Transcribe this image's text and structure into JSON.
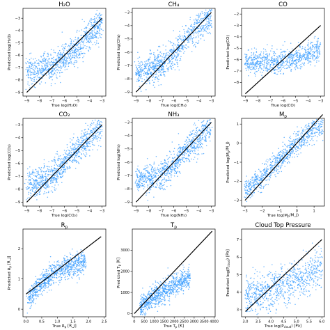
{
  "chart_data": [
    {
      "type": "scatter",
      "title": "H₂O",
      "xlabel": "True log(H₂O)",
      "ylabel": "Predicted log(H₂O)",
      "xlim": [
        -9.3,
        -2.7
      ],
      "ylim": [
        -9.3,
        -2.2
      ],
      "xticks": [
        -9,
        -8,
        -7,
        -6,
        -5,
        -4,
        -3
      ],
      "yticks": [
        -9,
        -8,
        -7,
        -6,
        -5,
        -4,
        -3
      ],
      "xtick_labels": [
        "−9",
        "−8",
        "−7",
        "−6",
        "−5",
        "−4",
        "−3"
      ],
      "ytick_labels": [
        "−9",
        "−8",
        "−7",
        "−6",
        "−5",
        "−4",
        "−3"
      ],
      "identity_line": [
        [
          -9,
          -9
        ],
        [
          -3,
          -3
        ]
      ],
      "point_color": "#3399ff",
      "line_color": "#000000",
      "trend": [
        [
          -9,
          -7.3
        ],
        [
          -7,
          -6.9
        ],
        [
          -6,
          -6.3
        ],
        [
          -5,
          -5.4
        ],
        [
          -4,
          -4.3
        ],
        [
          -3,
          -3.3
        ]
      ],
      "spread": 0.6,
      "n_points": 900
    },
    {
      "type": "scatter",
      "title": "CH₄",
      "xlabel": "True log(CH₄)",
      "ylabel": "Predicted log(CH₄)",
      "xlim": [
        -9.3,
        -2.7
      ],
      "ylim": [
        -9.3,
        -2.7
      ],
      "xticks": [
        -9,
        -8,
        -7,
        -6,
        -5,
        -4,
        -3
      ],
      "yticks": [
        -9,
        -8,
        -7,
        -6,
        -5,
        -4,
        -3
      ],
      "xtick_labels": [
        "−9",
        "−8",
        "−7",
        "−6",
        "−5",
        "−4",
        "−3"
      ],
      "ytick_labels": [
        "−9",
        "−8",
        "−7",
        "−6",
        "−5",
        "−4",
        "−3"
      ],
      "identity_line": [
        [
          -9,
          -9
        ],
        [
          -3,
          -3
        ]
      ],
      "point_color": "#3399ff",
      "line_color": "#000000",
      "trend": [
        [
          -9,
          -7.6
        ],
        [
          -7,
          -7.0
        ],
        [
          -6,
          -6.2
        ],
        [
          -5,
          -5.0
        ],
        [
          -4,
          -4.1
        ],
        [
          -3,
          -3.2
        ]
      ],
      "spread": 0.55,
      "n_points": 900
    },
    {
      "type": "scatter",
      "title": "CO",
      "xlabel": "True log(CO)",
      "ylabel": "Predicted log(CO)",
      "xlim": [
        -9.3,
        -2.7
      ],
      "ylim": [
        -9.2,
        -1.5
      ],
      "xticks": [
        -9,
        -8,
        -7,
        -6,
        -5,
        -4,
        -3
      ],
      "yticks": [
        -8,
        -7,
        -6,
        -5,
        -4,
        -3,
        -2
      ],
      "xtick_labels": [
        "−9",
        "−8",
        "−7",
        "−6",
        "−5",
        "−4",
        "−3"
      ],
      "ytick_labels": [
        "−8",
        "−7",
        "−6",
        "−5",
        "−4",
        "−3",
        "−2"
      ],
      "identity_line": [
        [
          -9,
          -9
        ],
        [
          -3,
          -3
        ]
      ],
      "point_color": "#3399ff",
      "line_color": "#000000",
      "trend": [
        [
          -9,
          -6.3
        ],
        [
          -6,
          -6.1
        ],
        [
          -4,
          -5.6
        ],
        [
          -3,
          -5.0
        ]
      ],
      "spread": 0.5,
      "n_points": 800
    },
    {
      "type": "scatter",
      "title": "CO₂",
      "xlabel": "True log(CO₂)",
      "ylabel": "Predicted log(CO₂)",
      "xlim": [
        -9.3,
        -2.7
      ],
      "ylim": [
        -9.3,
        -2.5
      ],
      "xticks": [
        -9,
        -8,
        -7,
        -6,
        -5,
        -4,
        -3
      ],
      "yticks": [
        -9,
        -8,
        -7,
        -6,
        -5,
        -4,
        -3
      ],
      "xtick_labels": [
        "−9",
        "−8",
        "−7",
        "−6",
        "−5",
        "−4",
        "−3"
      ],
      "ytick_labels": [
        "−9",
        "−8",
        "−7",
        "−6",
        "−5",
        "−4",
        "−3"
      ],
      "identity_line": [
        [
          -9,
          -9
        ],
        [
          -3,
          -3
        ]
      ],
      "point_color": "#3399ff",
      "line_color": "#000000",
      "trend": [
        [
          -9,
          -7.7
        ],
        [
          -7,
          -7.1
        ],
        [
          -6,
          -6.0
        ],
        [
          -5,
          -4.9
        ],
        [
          -4,
          -4.0
        ],
        [
          -3,
          -3.1
        ]
      ],
      "spread": 0.55,
      "n_points": 900
    },
    {
      "type": "scatter",
      "title": "NH₃",
      "xlabel": "True log(NH₃)",
      "ylabel": "Predicted log(NH₃)",
      "xlim": [
        -9.3,
        -2.7
      ],
      "ylim": [
        -9.3,
        -2.7
      ],
      "xticks": [
        -9,
        -8,
        -7,
        -6,
        -5,
        -4,
        -3
      ],
      "yticks": [
        -9,
        -8,
        -7,
        -6,
        -5,
        -4,
        -3
      ],
      "xtick_labels": [
        "−9",
        "−8",
        "−7",
        "−6",
        "−5",
        "−4",
        "−3"
      ],
      "ytick_labels": [
        "−9",
        "−8",
        "−7",
        "−6",
        "−5",
        "−4",
        "−3"
      ],
      "identity_line": [
        [
          -9,
          -9
        ],
        [
          -3,
          -3
        ]
      ],
      "point_color": "#3399ff",
      "line_color": "#000000",
      "trend": [
        [
          -9,
          -7.3
        ],
        [
          -7,
          -7.0
        ],
        [
          -6,
          -6.2
        ],
        [
          -5,
          -5.2
        ],
        [
          -4,
          -4.2
        ],
        [
          -3,
          -3.2
        ]
      ],
      "spread": 0.55,
      "n_points": 900
    },
    {
      "type": "scatter",
      "title": "M_p",
      "xlabel": "True log(M_p/M_J)",
      "ylabel": "Predicted log(M_p/M_J)",
      "xlim": [
        -3.2,
        1.6
      ],
      "ylim": [
        -3.3,
        1.3
      ],
      "xticks": [
        -3,
        -2,
        -1,
        0,
        1
      ],
      "yticks": [
        -3,
        -2,
        -1,
        0,
        1
      ],
      "xtick_labels": [
        "−3",
        "−2",
        "−1",
        "0",
        "1"
      ],
      "ytick_labels": [
        "−3",
        "−2",
        "−1",
        "0",
        "1"
      ],
      "identity_line": [
        [
          -3,
          -3
        ],
        [
          1.5,
          1.5
        ]
      ],
      "point_color": "#3399ff",
      "line_color": "#000000",
      "trend": [
        [
          -3,
          -2.5
        ],
        [
          -2,
          -1.8
        ],
        [
          -1,
          -0.9
        ],
        [
          0,
          0.0
        ],
        [
          1,
          0.8
        ],
        [
          1.5,
          0.9
        ]
      ],
      "spread": 0.3,
      "n_points": 800
    },
    {
      "type": "scatter",
      "title": "R_p",
      "xlabel": "True R_p [R_J]",
      "ylabel": "Predicted R_p [R_J]",
      "xlim": [
        -0.1,
        2.55
      ],
      "ylim": [
        -0.25,
        2.65
      ],
      "xticks": [
        0.0,
        0.5,
        1.0,
        1.5,
        2.0,
        2.5
      ],
      "yticks": [
        0,
        1,
        2
      ],
      "xtick_labels": [
        "0.0",
        "0.5",
        "1.0",
        "1.5",
        "2.0",
        "2.5"
      ],
      "ytick_labels": [
        "0",
        "1",
        "2"
      ],
      "identity_line": [
        [
          0,
          0.5
        ],
        [
          2.4,
          2.4
        ]
      ],
      "point_color": "#3399ff",
      "line_color": "#000000",
      "trend": [
        [
          0.05,
          0.3
        ],
        [
          0.5,
          0.9
        ],
        [
          1.0,
          1.25
        ],
        [
          1.5,
          1.45
        ],
        [
          1.9,
          1.55
        ]
      ],
      "spread": 0.18,
      "n_points": 800
    },
    {
      "type": "scatter",
      "title": "T_p",
      "xlabel": "True T_p [K]",
      "ylabel": "Predicted T_p [K]",
      "xlim": [
        -100,
        4050
      ],
      "ylim": [
        -150,
        4000
      ],
      "xticks": [
        0,
        500,
        1000,
        1500,
        2000,
        2500,
        3000,
        3500,
        4000
      ],
      "yticks": [
        0,
        1000,
        2000,
        3000
      ],
      "xtick_labels": [
        "0",
        "500",
        "1000",
        "1500",
        "2000",
        "2500",
        "3000",
        "3500",
        "4000"
      ],
      "ytick_labels": [
        "0",
        "1000",
        "2000",
        "3000"
      ],
      "identity_line": [
        [
          0,
          0
        ],
        [
          3900,
          3900
        ]
      ],
      "point_color": "#3399ff",
      "line_color": "#000000",
      "trend": [
        [
          300,
          250
        ],
        [
          1000,
          800
        ],
        [
          2000,
          1350
        ],
        [
          2800,
          1750
        ]
      ],
      "spread": 260,
      "n_points": 800
    },
    {
      "type": "scatter",
      "title": "Cloud Top Pressure",
      "xlabel": "True log(P_cloud) [Pa]",
      "ylabel": "Predicted log(P_cloud) [Pa]",
      "xlim": [
        2.85,
        6.1
      ],
      "ylim": [
        2.6,
        7.6
      ],
      "xticks": [
        3.0,
        3.5,
        4.0,
        4.5,
        5.0,
        5.5,
        6.0
      ],
      "yticks": [
        3,
        4,
        5,
        6,
        7
      ],
      "xtick_labels": [
        "3.0",
        "3.5",
        "4.0",
        "4.5",
        "5.0",
        "5.5",
        "6.0"
      ],
      "ytick_labels": [
        "3",
        "4",
        "5",
        "6",
        "7"
      ],
      "identity_line": [
        [
          3.0,
          2.9
        ],
        [
          6.0,
          7.0
        ]
      ],
      "point_color": "#3399ff",
      "line_color": "#000000",
      "trend": [
        [
          3.0,
          3.8
        ],
        [
          4.0,
          4.1
        ],
        [
          5.0,
          4.7
        ],
        [
          6.0,
          5.3
        ]
      ],
      "spread": 0.55,
      "n_points": 800
    }
  ]
}
